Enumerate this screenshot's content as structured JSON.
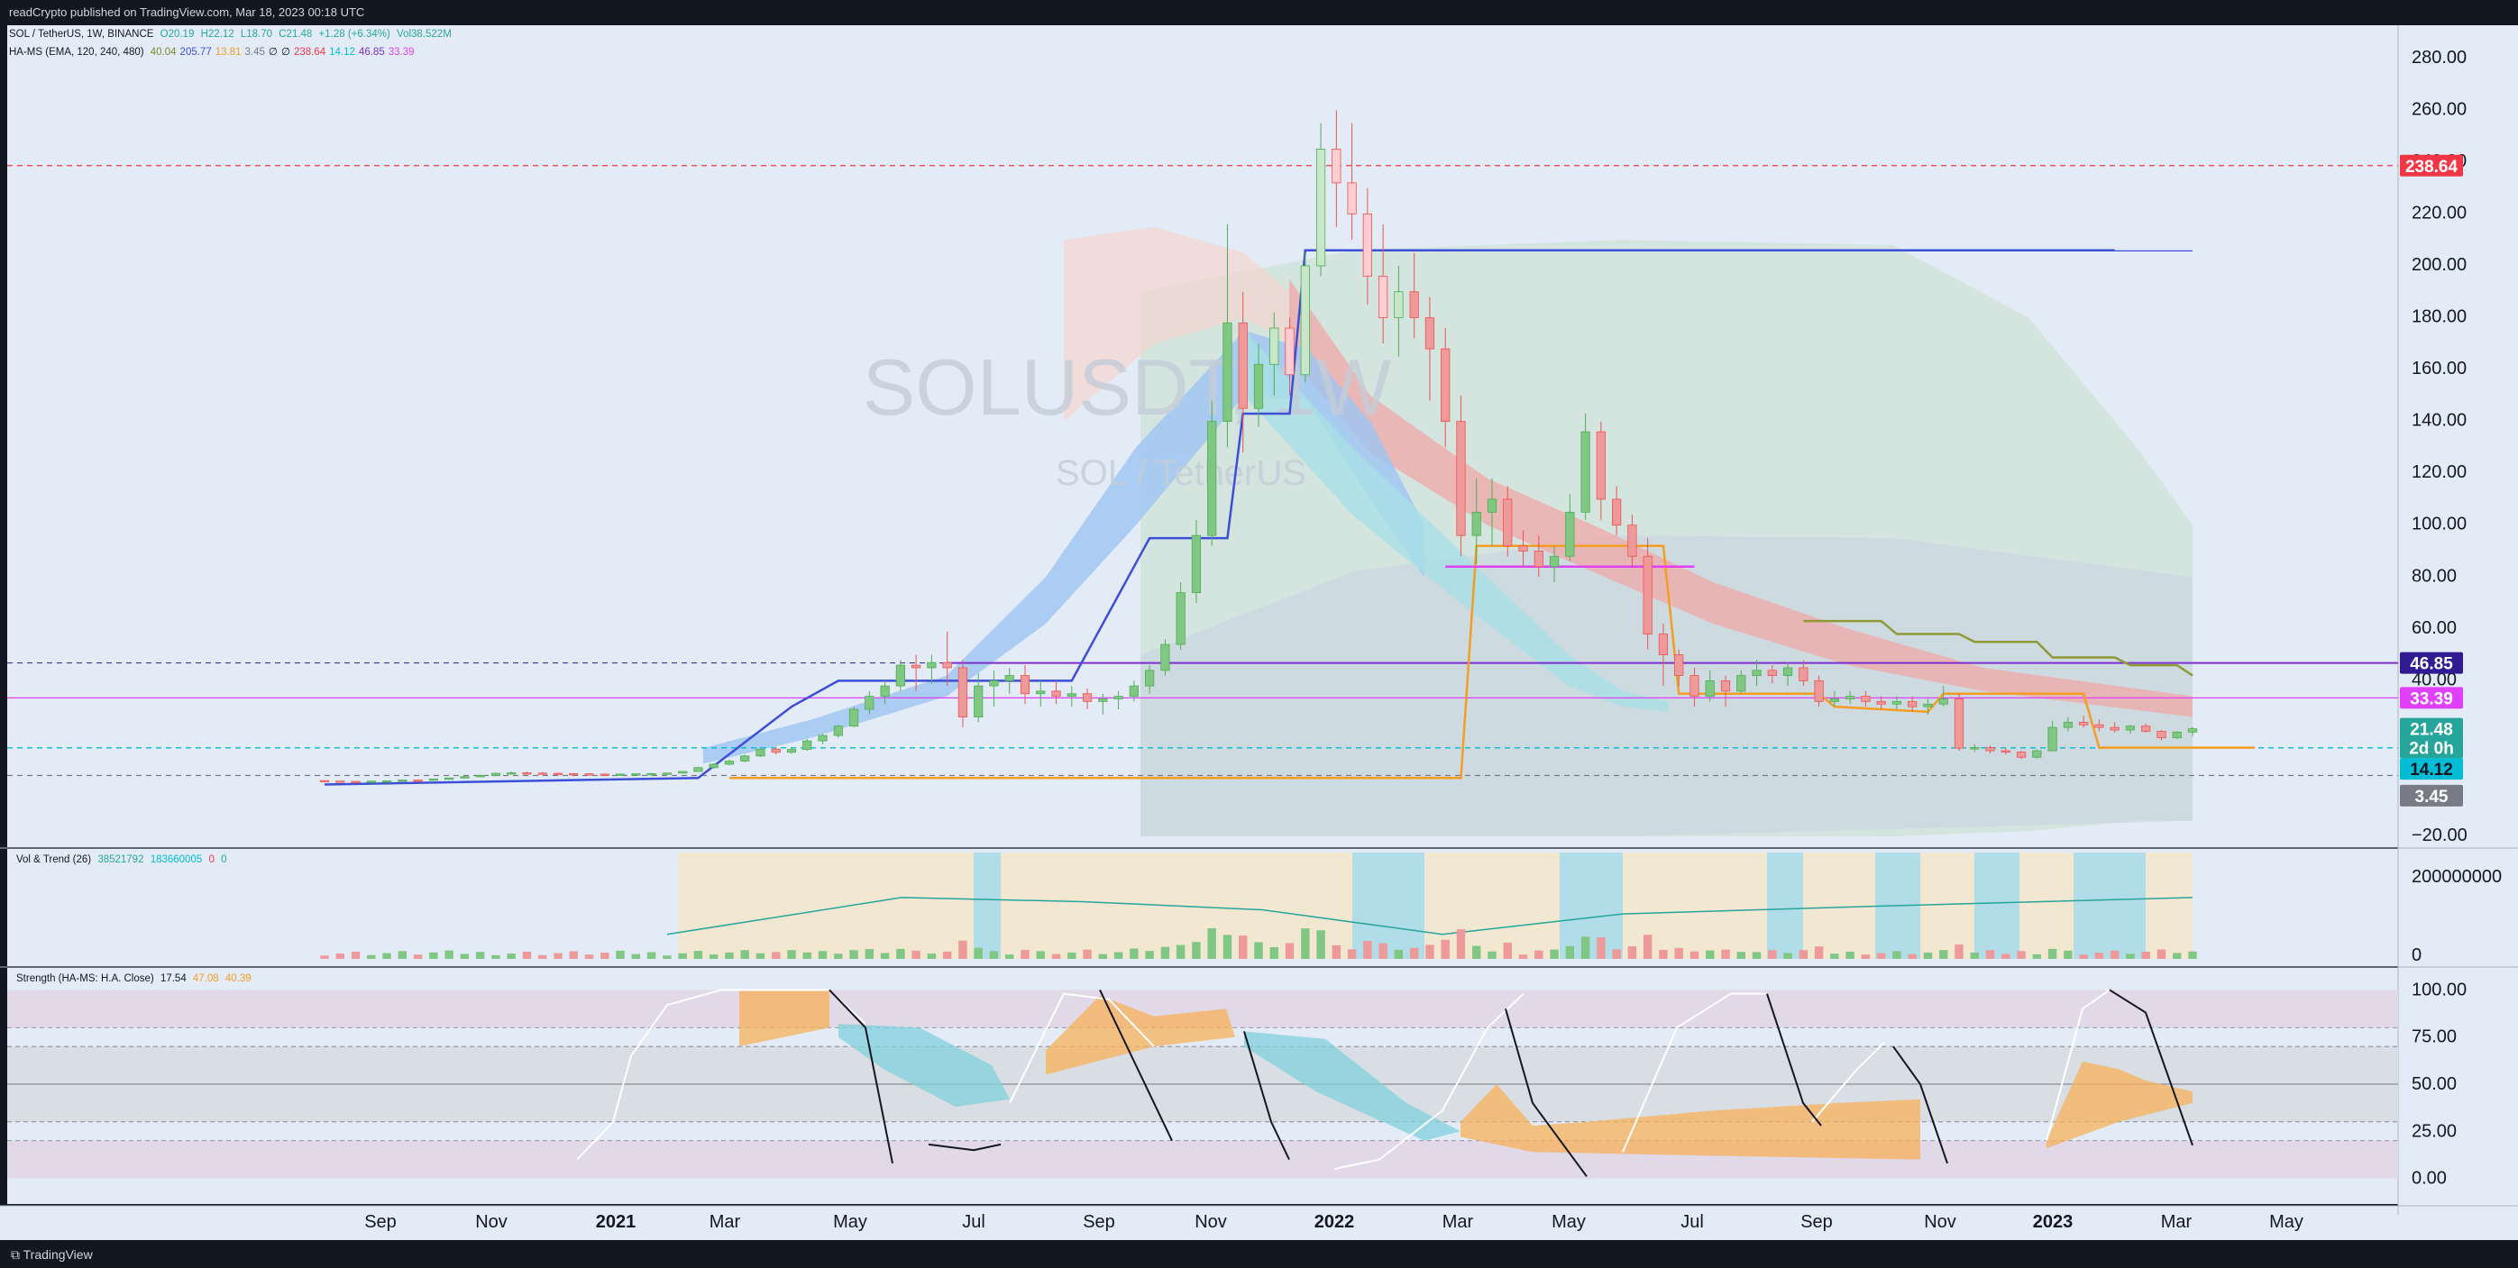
{
  "header": {
    "published_text": "readCrypto published on TradingView.com, Mar 18, 2023 00:18 UTC"
  },
  "footer": {
    "brand": "TradingView"
  },
  "main_legend": {
    "symbol": "SOL / TetherUS, 1W, BINANCE",
    "open": "O20.19",
    "high": "H22.12",
    "low": "L18.70",
    "close": "C21.48",
    "change": "+1.28 (+6.34%)",
    "volume": "Vol38.522M",
    "indicator_name": "HA-MS (EMA, 120, 240, 480)",
    "indicator_values": [
      "40.04",
      "205.77",
      "13.81",
      "3.45",
      "∅",
      "∅",
      "238.64",
      "14.12",
      "46.85",
      "33.39"
    ],
    "indicator_colors": [
      "#7a8a2a",
      "#3d4fd8",
      "#f59d22",
      "#787b86",
      "#131722",
      "#131722",
      "#f23645",
      "#00bcd4",
      "#7b2fd0",
      "#e040fb"
    ]
  },
  "watermark": {
    "line1": "SOLUSDT, 1W",
    "line2": "SOL / TetherUS"
  },
  "volume_legend": {
    "name": "Vol & Trend (26)",
    "values": [
      "38521792",
      "183660005",
      "0",
      "0"
    ]
  },
  "strength_legend": {
    "name": "Strength (HA-MS: H.A. Close)",
    "values": [
      "17.54",
      "47.08",
      "40.39"
    ]
  },
  "price_axis": {
    "ticks": [
      "280.00",
      "260.00",
      "240.00",
      "220.00",
      "200.00",
      "180.00",
      "160.00",
      "140.00",
      "120.00",
      "100.00",
      "80.00",
      "60.00",
      "40.00",
      "−20.00"
    ],
    "labels": [
      {
        "text": "238.64",
        "bg": "#f23645",
        "fg": "#ffffff",
        "value": 238.64
      },
      {
        "text": "46.85",
        "bg": "#311b92",
        "fg": "#ffffff",
        "value": 46.85
      },
      {
        "text": "33.39",
        "bg": "#e040fb",
        "fg": "#ffffff",
        "value": 33.39
      },
      {
        "text": "21.48",
        "bg": "#26a69a",
        "fg": "#ffffff",
        "value": 21.48
      },
      {
        "text": "2d 0h",
        "bg": "#26a69a",
        "fg": "#ffffff",
        "value": 14.3
      },
      {
        "text": "14.12",
        "bg": "#00bcd4",
        "fg": "#131722",
        "value": 6.0
      },
      {
        "text": "3.45",
        "bg": "#787b86",
        "fg": "#ffffff",
        "value": -4.3
      }
    ]
  },
  "volume_axis": {
    "ticks": [
      "200000000",
      "0"
    ]
  },
  "strength_axis": {
    "ticks": [
      "100.00",
      "75.00",
      "50.00",
      "25.00",
      "0.00"
    ]
  },
  "time_axis": {
    "labels": [
      "Sep",
      "Nov",
      "2021",
      "Mar",
      "May",
      "Jul",
      "Sep",
      "Nov",
      "2022",
      "Mar",
      "May",
      "Jul",
      "Sep",
      "Nov",
      "2023",
      "Mar",
      "May"
    ],
    "bold": [
      "2021",
      "2022",
      "2023"
    ]
  },
  "chart_data": {
    "type": "candlestick",
    "title": "SOL / TetherUS, 1W, BINANCE",
    "symbol": "SOLUSDT",
    "interval": "1W",
    "ylim": [
      -20,
      290
    ],
    "last_price": 21.48,
    "ohlc_last": {
      "open": 20.19,
      "high": 22.12,
      "low": 18.7,
      "close": 21.48
    },
    "weekly_candles": [
      [
        1.5,
        1.6,
        1.2,
        1.3
      ],
      [
        1.3,
        1.4,
        1.1,
        1.2
      ],
      [
        1.2,
        1.3,
        1.0,
        1.1
      ],
      [
        1.1,
        1.4,
        1.0,
        1.3
      ],
      [
        1.3,
        1.5,
        1.2,
        1.4
      ],
      [
        1.4,
        1.8,
        1.3,
        1.7
      ],
      [
        1.7,
        1.9,
        1.5,
        1.6
      ],
      [
        1.6,
        2.2,
        1.5,
        2.1
      ],
      [
        2.1,
        2.6,
        2.0,
        2.5
      ],
      [
        2.5,
        3.2,
        2.3,
        3.0
      ],
      [
        3.0,
        3.8,
        2.8,
        3.5
      ],
      [
        3.5,
        4.6,
        3.3,
        4.3
      ],
      [
        4.3,
        5.0,
        3.9,
        4.5
      ],
      [
        4.5,
        4.9,
        4.1,
        4.4
      ],
      [
        4.4,
        4.8,
        4.0,
        4.3
      ],
      [
        4.3,
        4.6,
        3.9,
        4.2
      ],
      [
        4.2,
        4.4,
        3.9,
        4.1
      ],
      [
        4.1,
        4.4,
        3.8,
        4.0
      ],
      [
        4.0,
        4.3,
        3.7,
        3.9
      ],
      [
        3.9,
        4.2,
        3.6,
        4.0
      ],
      [
        4.0,
        4.3,
        3.8,
        4.1
      ],
      [
        4.1,
        4.4,
        3.9,
        4.2
      ],
      [
        4.2,
        4.6,
        4.0,
        4.4
      ],
      [
        4.4,
        5.2,
        4.3,
        5.0
      ],
      [
        5.0,
        6.8,
        4.9,
        6.5
      ],
      [
        6.5,
        8.2,
        6.1,
        7.8
      ],
      [
        7.8,
        9.5,
        7.4,
        9.0
      ],
      [
        9.0,
        11.5,
        8.6,
        11.0
      ],
      [
        11.0,
        14.2,
        10.5,
        13.6
      ],
      [
        13.6,
        14.5,
        11.5,
        12.4
      ],
      [
        12.4,
        14.2,
        11.8,
        13.5
      ],
      [
        13.5,
        17.5,
        13.0,
        16.8
      ],
      [
        16.8,
        19.5,
        15.5,
        18.9
      ],
      [
        18.9,
        23.0,
        18.0,
        22.5
      ],
      [
        22.5,
        30.0,
        22.0,
        29.0
      ],
      [
        29.0,
        36.0,
        27.0,
        34.0
      ],
      [
        34.0,
        40.0,
        31.0,
        38.0
      ],
      [
        38.0,
        48.0,
        36.0,
        46.0
      ],
      [
        46.0,
        50.0,
        36.0,
        45.0
      ],
      [
        45.0,
        50.0,
        39.0,
        47.0
      ],
      [
        47.0,
        59.0,
        38.0,
        45.0
      ],
      [
        45.0,
        48.0,
        22.0,
        26.0
      ],
      [
        26.0,
        43.0,
        24.0,
        38.0
      ],
      [
        38.0,
        44.0,
        30.0,
        40.0
      ],
      [
        40.0,
        45.0,
        35.0,
        42.0
      ],
      [
        42.0,
        46.0,
        31.0,
        35.0
      ],
      [
        35.0,
        40.0,
        30.0,
        36.0
      ],
      [
        36.0,
        40.0,
        31.0,
        34.0
      ],
      [
        34.0,
        38.0,
        30.0,
        35.0
      ],
      [
        35.0,
        37.0,
        29.0,
        32.0
      ],
      [
        32.0,
        35.0,
        27.0,
        33.0
      ],
      [
        33.0,
        36.0,
        29.0,
        34.0
      ],
      [
        34.0,
        40.0,
        32.0,
        38.0
      ],
      [
        38.0,
        46.0,
        35.0,
        44.0
      ],
      [
        44.0,
        56.0,
        42.0,
        54.0
      ],
      [
        54.0,
        78.0,
        52.0,
        74.0
      ],
      [
        74.0,
        102.0,
        70.0,
        96.0
      ],
      [
        96.0,
        148.0,
        92.0,
        140.0
      ],
      [
        140.0,
        216.0,
        130.0,
        178.0
      ],
      [
        178.0,
        190.0,
        128.0,
        145.0
      ],
      [
        145.0,
        170.0,
        138.0,
        162.0
      ],
      [
        162.0,
        182.0,
        150.0,
        176.0
      ],
      [
        176.0,
        180.0,
        150.0,
        158.0
      ],
      [
        158.0,
        205.0,
        155.0,
        200.0
      ],
      [
        200.0,
        255.0,
        196.0,
        245.0
      ],
      [
        245.0,
        260.0,
        215.0,
        232.0
      ],
      [
        232.0,
        255.0,
        210.0,
        220.0
      ],
      [
        220.0,
        230.0,
        185.0,
        196.0
      ],
      [
        196.0,
        216.0,
        170.0,
        180.0
      ],
      [
        180.0,
        200.0,
        165.0,
        190.0
      ],
      [
        190.0,
        205.0,
        172.0,
        180.0
      ],
      [
        180.0,
        188.0,
        148.0,
        168.0
      ],
      [
        168.0,
        176.0,
        130.0,
        140.0
      ],
      [
        140.0,
        150.0,
        88.0,
        96.0
      ],
      [
        96.0,
        118.0,
        85.0,
        105.0
      ],
      [
        105.0,
        118.0,
        92.0,
        110.0
      ],
      [
        110.0,
        115.0,
        88.0,
        92.0
      ],
      [
        92.0,
        98.0,
        84.0,
        90.0
      ],
      [
        90.0,
        96.0,
        80.0,
        84.0
      ],
      [
        84.0,
        92.0,
        78.0,
        88.0
      ],
      [
        88.0,
        112.0,
        86.0,
        105.0
      ],
      [
        105.0,
        143.0,
        102.0,
        136.0
      ],
      [
        136.0,
        140.0,
        102.0,
        110.0
      ],
      [
        110.0,
        115.0,
        96.0,
        100.0
      ],
      [
        100.0,
        104.0,
        84.0,
        88.0
      ],
      [
        88.0,
        95.0,
        52.0,
        58.0
      ],
      [
        58.0,
        62.0,
        38.0,
        50.0
      ],
      [
        50.0,
        52.0,
        38.0,
        42.0
      ],
      [
        42.0,
        45.0,
        30.0,
        34.0
      ],
      [
        34.0,
        44.0,
        32.0,
        40.0
      ],
      [
        40.0,
        42.0,
        30.0,
        36.0
      ],
      [
        36.0,
        44.0,
        35.0,
        42.0
      ],
      [
        42.0,
        48.0,
        38.0,
        44.0
      ],
      [
        44.0,
        46.0,
        39.0,
        42.0
      ],
      [
        42.0,
        47.0,
        38.0,
        45.0
      ],
      [
        45.0,
        48.0,
        38.0,
        40.0
      ],
      [
        40.0,
        42.0,
        30.0,
        32.0
      ],
      [
        32.0,
        36.0,
        30.0,
        33.0
      ],
      [
        33.0,
        36.0,
        31.0,
        34.0
      ],
      [
        34.0,
        36.0,
        30.0,
        32.0
      ],
      [
        32.0,
        34.0,
        29.0,
        31.0
      ],
      [
        31.0,
        34.0,
        29.0,
        32.0
      ],
      [
        32.0,
        34.0,
        28.0,
        30.0
      ],
      [
        30.0,
        33.0,
        27.0,
        31.0
      ],
      [
        31.0,
        38.0,
        30.0,
        33.0
      ],
      [
        33.0,
        35.0,
        13.0,
        14.0
      ],
      [
        14.0,
        15.5,
        12.5,
        14.2
      ],
      [
        14.2,
        15.0,
        12.0,
        13.0
      ],
      [
        13.0,
        14.0,
        11.5,
        12.5
      ],
      [
        12.5,
        13.0,
        9.8,
        10.5
      ],
      [
        10.5,
        13.5,
        10.0,
        13.0
      ],
      [
        13.0,
        24.5,
        12.8,
        22.0
      ],
      [
        22.0,
        26.0,
        20.5,
        24.0
      ],
      [
        24.0,
        26.5,
        22.0,
        23.0
      ],
      [
        23.0,
        25.0,
        20.5,
        22.0
      ],
      [
        22.0,
        24.0,
        20.0,
        21.0
      ],
      [
        21.0,
        23.0,
        19.5,
        22.5
      ],
      [
        22.5,
        23.5,
        20.0,
        20.5
      ],
      [
        20.5,
        21.0,
        17.0,
        18.0
      ],
      [
        18.0,
        20.5,
        17.5,
        20.19
      ],
      [
        20.19,
        22.12,
        18.7,
        21.48
      ]
    ],
    "horizontal_levels": [
      {
        "name": "high-resistance",
        "value": 238.64,
        "color": "#f23645",
        "style": "dashed"
      },
      {
        "name": "ms-upper",
        "value": 205.77,
        "color": "#3d4fd8",
        "style": "solid"
      },
      {
        "name": "purple-support",
        "value": 46.85,
        "color": "#7b2fd0",
        "style": "solid"
      },
      {
        "name": "magenta-level",
        "value": 33.39,
        "color": "#e040fb",
        "style": "solid"
      },
      {
        "name": "cyan-level",
        "value": 14.12,
        "color": "#00bcd4",
        "style": "dashed"
      },
      {
        "name": "low-level",
        "value": 3.45,
        "color": "#787b86",
        "style": "dashed"
      }
    ],
    "step_lines": [
      {
        "name": "ms-blue",
        "color": "#3d4fd8",
        "points": [
          [
            0,
            0
          ],
          [
            24,
            2.5
          ],
          [
            30,
            30
          ],
          [
            33,
            40
          ],
          [
            41,
            40
          ],
          [
            48,
            40
          ],
          [
            53,
            95
          ],
          [
            58,
            95
          ],
          [
            59,
            143
          ],
          [
            62,
            143
          ],
          [
            63,
            206
          ],
          [
            115,
            206
          ]
        ]
      },
      {
        "name": "ms-orange",
        "color": "#f59d22",
        "points": [
          [
            26,
            2.5
          ],
          [
            50,
            2.5
          ],
          [
            73,
            2.5
          ],
          [
            74,
            92
          ],
          [
            86,
            92
          ],
          [
            87,
            35
          ],
          [
            96,
            35
          ],
          [
            97,
            30
          ],
          [
            103,
            28
          ],
          [
            104,
            35
          ],
          [
            113,
            35
          ],
          [
            114,
            14.2
          ],
          [
            124,
            14.2
          ]
        ]
      },
      {
        "name": "ms-olive",
        "color": "#8e9a35",
        "points": [
          [
            95,
            63
          ],
          [
            100,
            63
          ],
          [
            101,
            58
          ],
          [
            105,
            58
          ],
          [
            106,
            55
          ],
          [
            110,
            55
          ],
          [
            111,
            49
          ],
          [
            115,
            49
          ],
          [
            116,
            46
          ],
          [
            119,
            46
          ],
          [
            120,
            42
          ]
        ]
      },
      {
        "name": "magenta-short",
        "color": "#e040fb",
        "points": [
          [
            72,
            84
          ],
          [
            88,
            84
          ]
        ]
      }
    ],
    "volume": {
      "name": "Vol & Trend (26)",
      "values": [
        38521792,
        183660005,
        0,
        0
      ],
      "ylim": [
        0,
        260000000
      ]
    },
    "strength": {
      "name": "Strength (HA-MS: H.A. Close)",
      "values": [
        17.54,
        47.08,
        40.39
      ],
      "ylim": [
        -5,
        105
      ],
      "levels": [
        80,
        70,
        50,
        30,
        20
      ]
    }
  }
}
